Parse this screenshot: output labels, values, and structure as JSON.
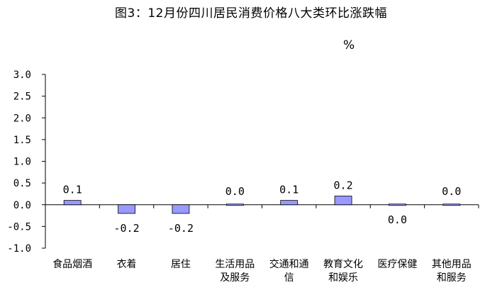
{
  "chart_data": {
    "type": "bar",
    "title": "图3：12月份四川居民消费价格八大类环比涨跌幅",
    "unit": "%",
    "categories": [
      [
        "食品烟酒"
      ],
      [
        "衣着"
      ],
      [
        "居住"
      ],
      [
        "生活用品",
        "及服务"
      ],
      [
        "交通和通",
        "信"
      ],
      [
        "教育文化",
        "和娱乐"
      ],
      [
        "医疗保健"
      ],
      [
        "其他用品",
        "和服务"
      ]
    ],
    "values": [
      0.1,
      -0.2,
      -0.2,
      0.0,
      0.1,
      0.2,
      0.0,
      0.0
    ],
    "value_labels": [
      "0.1",
      "-0.2",
      "-0.2",
      "0.0",
      "0.1",
      "0.2",
      "0.0",
      "0.0"
    ],
    "ylim": [
      -1.0,
      3.0
    ],
    "yticks": [
      "3.0",
      "2.5",
      "2.0",
      "1.5",
      "1.0",
      "0.5",
      "0.0",
      "-0.5",
      "-1.0"
    ],
    "bar_color": "#9999ff",
    "grid": false,
    "legend": "none"
  }
}
